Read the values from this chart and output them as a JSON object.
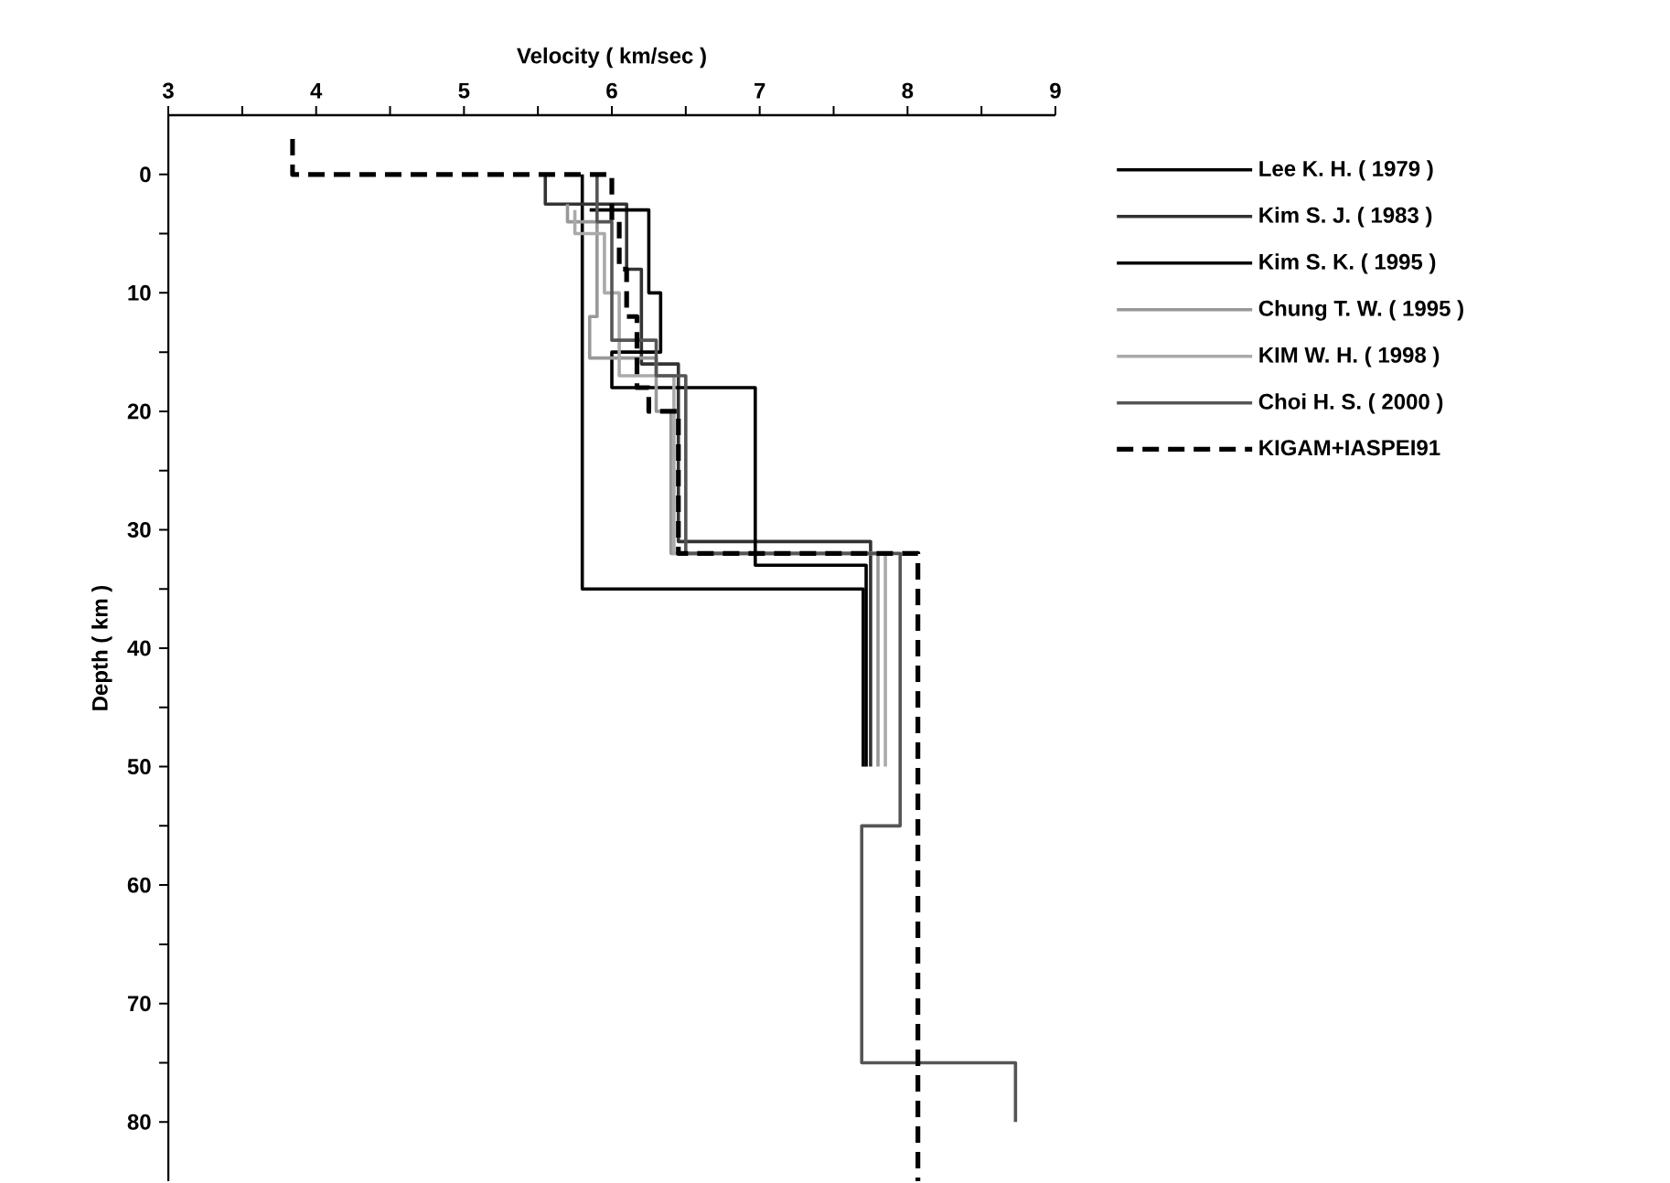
{
  "chart_data": {
    "type": "line",
    "xlabel": "Velocity ( km/sec )",
    "ylabel": "Depth ( km )",
    "xlim": [
      3,
      9
    ],
    "ylim": [
      85,
      -5
    ],
    "xticks": [
      3,
      {
        "value": 3.5,
        "label": null
      },
      4,
      {
        "value": 4.5,
        "label": null
      },
      5,
      {
        "value": 5.5,
        "label": null
      },
      6,
      {
        "value": 6.5,
        "label": null
      },
      7,
      {
        "value": 7.5,
        "label": null
      },
      8,
      {
        "value": 8.5,
        "label": null
      },
      9
    ],
    "yticks": [
      0,
      {
        "value": 5,
        "label": null
      },
      10,
      {
        "value": 15,
        "label": null
      },
      20,
      {
        "value": 25,
        "label": null
      },
      30,
      {
        "value": 35,
        "label": null
      },
      40,
      {
        "value": 45,
        "label": null
      },
      50,
      {
        "value": 55,
        "label": null
      },
      60,
      {
        "value": 65,
        "label": null
      },
      70,
      {
        "value": 75,
        "label": null
      },
      80
    ],
    "legend": "right",
    "grid": false,
    "marker": "none",
    "series": [
      {
        "name": "Lee K. H. ( 1979 )",
        "color": "#000000",
        "line_style": "solid",
        "x": [
          5.8,
          5.8,
          7.7,
          7.7
        ],
        "values": [
          0,
          35,
          35,
          50
        ]
      },
      {
        "name": "Kim S. J. ( 1983 )",
        "color": "#333333",
        "line_style": "solid",
        "x": [
          5.55,
          5.55,
          6.1,
          6.1,
          6.2,
          6.2,
          6.45,
          6.45,
          7.75,
          7.75
        ],
        "values": [
          0,
          2.5,
          2.5,
          8,
          8,
          16,
          16,
          31,
          31,
          50
        ]
      },
      {
        "name": "Kim S. K. ( 1995 )",
        "color": "#000000",
        "line_style": "solid",
        "x": [
          5.85,
          6.25,
          6.25,
          6.33,
          6.33,
          6.0,
          6.0,
          6.97,
          6.97,
          7.72,
          7.72
        ],
        "values": [
          3,
          3,
          10,
          10,
          15,
          15,
          18,
          18,
          33,
          33,
          50
        ]
      },
      {
        "name": "Chung T. W. ( 1995 )",
        "color": "#999999",
        "line_style": "solid",
        "x": [
          5.7,
          5.7,
          5.9,
          5.9,
          5.85,
          5.85,
          6.3,
          6.3,
          6.4,
          6.4,
          7.8,
          7.8
        ],
        "values": [
          2.5,
          4,
          4,
          12,
          12,
          15.5,
          15.5,
          20,
          20,
          32,
          32,
          50
        ]
      },
      {
        "name": "KIM W. H. ( 1998 )",
        "color": "#aaaaaa",
        "line_style": "solid",
        "x": [
          5.75,
          5.75,
          5.95,
          5.95,
          6.05,
          6.05,
          6.42,
          6.42,
          7.85,
          7.85
        ],
        "values": [
          3,
          5,
          5,
          10,
          10,
          17,
          17,
          32,
          32,
          50
        ]
      },
      {
        "name": "Choi H. S. ( 2000 )",
        "color": "#555555",
        "line_style": "solid",
        "x": [
          5.9,
          5.9,
          6.0,
          6.0,
          6.3,
          6.3,
          6.5,
          6.5,
          7.95,
          7.95,
          7.69,
          7.69,
          8.73,
          8.73
        ],
        "values": [
          0,
          4,
          4,
          14,
          14,
          17,
          17,
          32,
          32,
          55,
          55,
          75,
          75,
          80
        ]
      },
      {
        "name": "KIGAM+IASPEI91",
        "color": "#000000",
        "line_style": "dashed",
        "x": [
          3.84,
          3.84,
          6.0,
          6.0,
          6.05,
          6.05,
          6.1,
          6.1,
          6.17,
          6.17,
          6.25,
          6.25,
          6.45,
          6.45,
          8.07,
          8.07
        ],
        "values": [
          -3,
          0,
          0,
          4,
          4,
          8,
          8,
          12,
          12,
          18,
          18,
          20,
          20,
          32,
          32,
          85
        ]
      }
    ]
  }
}
